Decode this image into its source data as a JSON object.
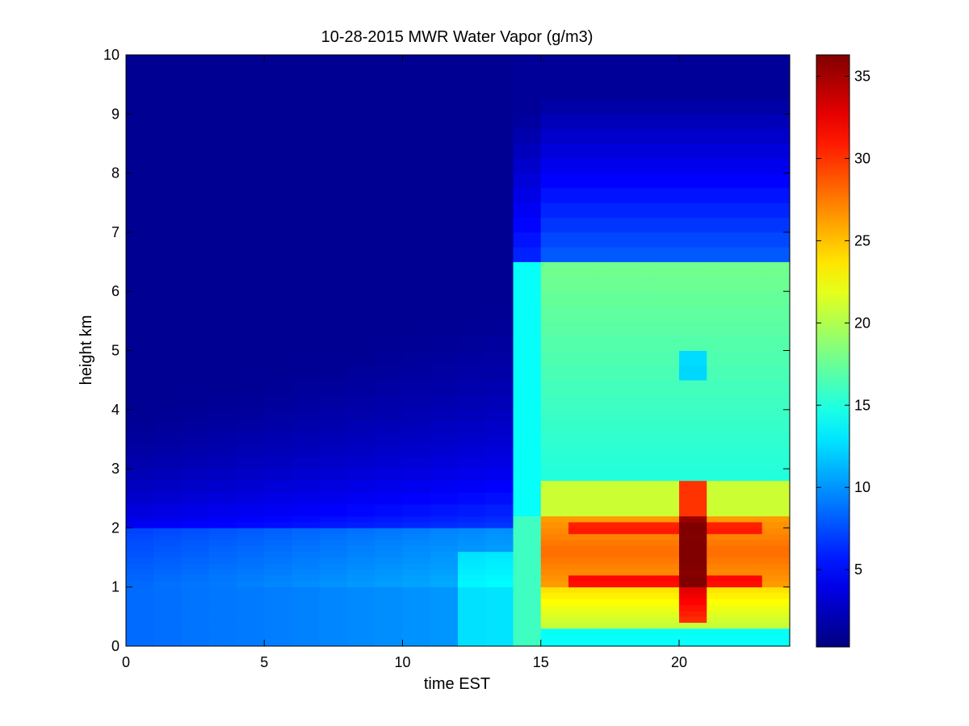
{
  "chart_data": {
    "type": "heatmap",
    "title": "10-28-2015 MWR Water Vapor (g/m3)",
    "xlabel": "time EST",
    "ylabel": "height km",
    "xlim": [
      0,
      24
    ],
    "ylim": [
      0,
      10
    ],
    "x_ticks": [
      0,
      5,
      10,
      15,
      20
    ],
    "y_ticks": [
      0,
      1,
      2,
      3,
      4,
      5,
      6,
      7,
      8,
      9,
      10
    ],
    "colorbar": {
      "range": [
        0.3,
        36.3
      ],
      "ticks": [
        5,
        10,
        15,
        20,
        25,
        30,
        35
      ],
      "colormap": "jet"
    },
    "grid": false,
    "x_centers": [
      0.5,
      1.5,
      2.5,
      3.5,
      4.5,
      5.5,
      6.5,
      7.5,
      8.5,
      9.5,
      10.5,
      11.5,
      12.5,
      13.5,
      14.5,
      15.5,
      16.5,
      17.5,
      18.5,
      19.5,
      20.5,
      21.5,
      22.5,
      23.5
    ],
    "heights": [
      0,
      0.1,
      0.2,
      0.3,
      0.4,
      0.5,
      0.6,
      0.7,
      0.8,
      0.9,
      1.0,
      1.1,
      1.2,
      1.3,
      1.4,
      1.5,
      1.6,
      1.7,
      1.8,
      1.9,
      2.0,
      2.1,
      2.2,
      2.4,
      2.6,
      2.8,
      3.0,
      3.2,
      3.4,
      3.6,
      3.8,
      4.0,
      4.25,
      4.5,
      4.75,
      5.0,
      5.25,
      5.5,
      5.75,
      6.0,
      6.25,
      6.5,
      6.75,
      7.0,
      7.25,
      7.5,
      7.75,
      8.0,
      8.25,
      8.5,
      8.75,
      9.0,
      9.25,
      9.5,
      9.75
    ]
  }
}
